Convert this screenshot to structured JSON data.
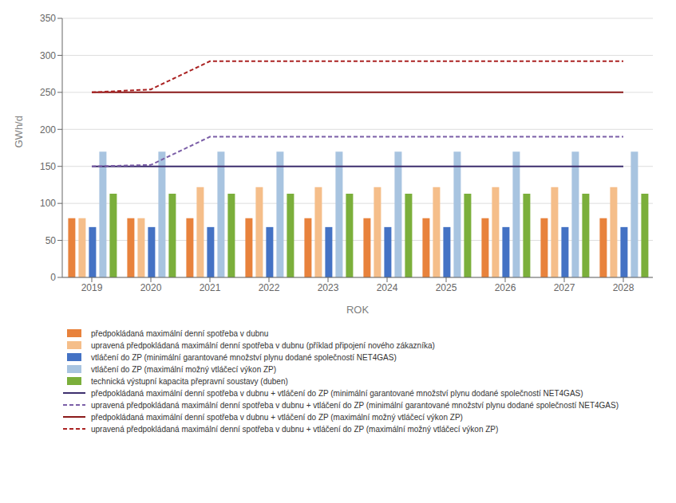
{
  "chart_data": {
    "type": "bar",
    "xlabel": "ROK",
    "ylabel": "GWh/d",
    "categories": [
      "2019",
      "2020",
      "2021",
      "2022",
      "2023",
      "2024",
      "2025",
      "2026",
      "2027",
      "2028"
    ],
    "ylim": [
      0,
      350
    ],
    "yticks": [
      0,
      50,
      100,
      150,
      200,
      250,
      300,
      350
    ],
    "grid": true,
    "legend": "bottom",
    "series": [
      {
        "name": "předpokládaná maximální denní spotřeba v dubnu",
        "type": "bar",
        "color": "#E8823C",
        "values": [
          80,
          80,
          80,
          80,
          80,
          80,
          80,
          80,
          80,
          80
        ]
      },
      {
        "name": "upravená předpokládaná maximální denní spotřeba v dubnu (příklad připojení nového zákazníka)",
        "type": "bar",
        "color": "#F5BE8A",
        "values": [
          80,
          80,
          122,
          122,
          122,
          122,
          122,
          122,
          122,
          122
        ]
      },
      {
        "name": "vtláčení do ZP (minimální garantované množství plynu dodané společností NET4GAS)",
        "type": "bar",
        "color": "#4472C4",
        "values": [
          68,
          68,
          68,
          68,
          68,
          68,
          68,
          68,
          68,
          68
        ]
      },
      {
        "name": "vtláčení do ZP (maximální možný vtláčecí výkon ZP)",
        "type": "bar",
        "color": "#A8C4E0",
        "values": [
          170,
          170,
          170,
          170,
          170,
          170,
          170,
          170,
          170,
          170
        ]
      },
      {
        "name": "technická výstupní kapacita přepravní soustavy (duben)",
        "type": "bar",
        "color": "#7BAF3B",
        "values": [
          113,
          113,
          113,
          113,
          113,
          113,
          113,
          113,
          113,
          113
        ]
      },
      {
        "name": "předpokládaná maximální denní spotřeba v dubnu + vtláčení do ZP (minimální garantované množství plynu dodané společností NET4GAS)",
        "type": "line",
        "color": "#3D2F6E",
        "line_style": "solid",
        "values": [
          150,
          null,
          null,
          null,
          null,
          null,
          null,
          null,
          null,
          150
        ]
      },
      {
        "name": "upravená předpokládaná maximální denní spotřeba v dubnu + vtláčení do ZP (minimální garantované množství plynu dodané společností NET4GAS)",
        "type": "line",
        "color": "#7B5EA7",
        "line_style": "dashed",
        "values": [
          150,
          152,
          190,
          null,
          null,
          null,
          null,
          null,
          null,
          190
        ]
      },
      {
        "name": "předpokládaná maximální denní spotřeba v dubnu + vtláčení do ZP (maximální možný vtláčecí výkon ZP)",
        "type": "line",
        "color": "#8B1A1A",
        "line_style": "solid",
        "values": [
          250,
          null,
          null,
          null,
          null,
          null,
          null,
          null,
          null,
          250
        ]
      },
      {
        "name": "upravená předpokládaná maximální denní spotřeba v dubnu + vtláčení do ZP (maximální možný vtláčecí výkon ZP)",
        "type": "line",
        "color": "#AA2222",
        "line_style": "dashed",
        "values": [
          250,
          254,
          292,
          null,
          null,
          null,
          null,
          null,
          null,
          292
        ]
      }
    ]
  }
}
